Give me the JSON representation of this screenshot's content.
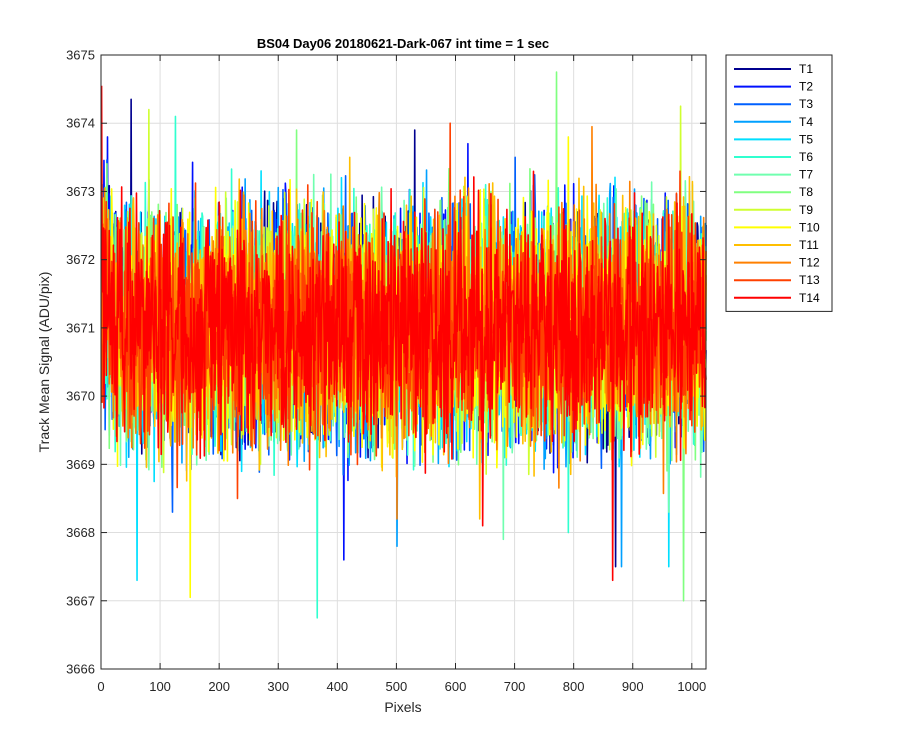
{
  "chart_data": {
    "type": "line",
    "title": "BS04 Day06 20180621-Dark-067 int time = 1 sec",
    "xlabel": "Pixels",
    "ylabel": "Track Mean Signal (ADU/pix)",
    "xlim": [
      0,
      1024
    ],
    "ylim": [
      3666,
      3675
    ],
    "xticks": [
      "0",
      "100",
      "200",
      "300",
      "400",
      "500",
      "600",
      "700",
      "800",
      "900",
      "1000"
    ],
    "yticks": [
      "3666",
      "3667",
      "3668",
      "3669",
      "3670",
      "3671",
      "3672",
      "3673",
      "3674",
      "3675"
    ],
    "grid": true,
    "legend_position": "outside-top-right",
    "noise_model": {
      "points_per_series": 1024,
      "mean": 3671.0,
      "typical_range": [
        3668.5,
        3673.3
      ]
    },
    "series": [
      {
        "name": "T1",
        "color": "#00008f",
        "extremes": [
          [
            50,
            3674.35
          ],
          [
            530,
            3673.9
          ],
          [
            870,
            3667.5
          ]
        ]
      },
      {
        "name": "T2",
        "color": "#0010ff",
        "extremes": [
          [
            10,
            3673.8
          ],
          [
            410,
            3667.6
          ],
          [
            620,
            3673.7
          ]
        ]
      },
      {
        "name": "T3",
        "color": "#0060ff",
        "extremes": [
          [
            120,
            3668.3
          ],
          [
            700,
            3673.5
          ]
        ]
      },
      {
        "name": "T4",
        "color": "#00a0ff",
        "extremes": [
          [
            500,
            3667.8
          ],
          [
            880,
            3667.5
          ]
        ]
      },
      {
        "name": "T5",
        "color": "#00dfff",
        "extremes": [
          [
            60,
            3667.3
          ],
          [
            960,
            3667.5
          ],
          [
            270,
            3673.3
          ]
        ]
      },
      {
        "name": "T6",
        "color": "#30ffcf",
        "extremes": [
          [
            125,
            3674.1
          ],
          [
            365,
            3666.75
          ],
          [
            790,
            3668.0
          ]
        ]
      },
      {
        "name": "T7",
        "color": "#70ffaf",
        "extremes": [
          [
            680,
            3667.9
          ],
          [
            960,
            3668.3
          ]
        ]
      },
      {
        "name": "T8",
        "color": "#80ff80",
        "extremes": [
          [
            770,
            3674.75
          ],
          [
            985,
            3667.0
          ],
          [
            330,
            3673.9
          ]
        ]
      },
      {
        "name": "T9",
        "color": "#cfff30",
        "extremes": [
          [
            980,
            3674.25
          ],
          [
            80,
            3674.2
          ]
        ]
      },
      {
        "name": "T10",
        "color": "#ffff00",
        "extremes": [
          [
            150,
            3667.05
          ],
          [
            790,
            3673.8
          ]
        ]
      },
      {
        "name": "T11",
        "color": "#ffbf00",
        "extremes": [
          [
            640,
            3668.2
          ],
          [
            420,
            3673.5
          ]
        ]
      },
      {
        "name": "T12",
        "color": "#ff8000",
        "extremes": [
          [
            830,
            3673.95
          ],
          [
            500,
            3668.2
          ]
        ]
      },
      {
        "name": "T13",
        "color": "#ff4000",
        "extremes": [
          [
            590,
            3674.0
          ],
          [
            230,
            3668.5
          ]
        ]
      },
      {
        "name": "T14",
        "color": "#ff0000",
        "extremes": [
          [
            0,
            3674.55
          ],
          [
            865,
            3667.3
          ],
          [
            645,
            3668.1
          ]
        ]
      }
    ]
  }
}
